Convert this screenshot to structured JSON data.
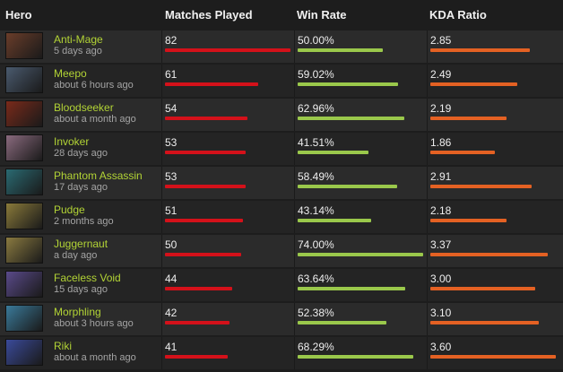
{
  "header": {
    "hero": "Hero",
    "matches": "Matches Played",
    "winrate": "Win Rate",
    "kda": "KDA Ratio"
  },
  "colors": {
    "matches_bar": "#d4111a",
    "winrate_bar": "#9ac84b",
    "kda_bar": "#e46123",
    "hero_name": "#b2d335"
  },
  "rows": [
    {
      "hero": "Anti-Mage",
      "ago": "5 days ago",
      "matches": "82",
      "winrate": "50.00%",
      "kda": "2.85",
      "portrait": "anti-mage-portrait",
      "pcolor": "#6a3d2a",
      "m_frac": 1.0,
      "w_frac": 0.6757,
      "k_frac": 0.7917
    },
    {
      "hero": "Meepo",
      "ago": "about 6 hours ago",
      "matches": "61",
      "winrate": "59.02%",
      "kda": "2.49",
      "portrait": "meepo-portrait",
      "pcolor": "#4a5a6e",
      "m_frac": 0.7439,
      "w_frac": 0.7976,
      "k_frac": 0.6917
    },
    {
      "hero": "Bloodseeker",
      "ago": "about a month ago",
      "matches": "54",
      "winrate": "62.96%",
      "kda": "2.19",
      "portrait": "bloodseeker-portrait",
      "pcolor": "#7a2a1a",
      "m_frac": 0.6585,
      "w_frac": 0.8508,
      "k_frac": 0.6083
    },
    {
      "hero": "Invoker",
      "ago": "28 days ago",
      "matches": "53",
      "winrate": "41.51%",
      "kda": "1.86",
      "portrait": "invoker-portrait",
      "pcolor": "#8a6a7e",
      "m_frac": 0.6463,
      "w_frac": 0.5609,
      "k_frac": 0.5167
    },
    {
      "hero": "Phantom Assassin",
      "ago": "17 days ago",
      "matches": "53",
      "winrate": "58.49%",
      "kda": "2.91",
      "portrait": "phantom-assassin-portrait",
      "pcolor": "#2a6a72",
      "m_frac": 0.6463,
      "w_frac": 0.7904,
      "k_frac": 0.8083
    },
    {
      "hero": "Pudge",
      "ago": "2 months ago",
      "matches": "51",
      "winrate": "43.14%",
      "kda": "2.18",
      "portrait": "pudge-portrait",
      "pcolor": "#8a7a3a",
      "m_frac": 0.622,
      "w_frac": 0.583,
      "k_frac": 0.6056
    },
    {
      "hero": "Juggernaut",
      "ago": "a day ago",
      "matches": "50",
      "winrate": "74.00%",
      "kda": "3.37",
      "portrait": "juggernaut-portrait",
      "pcolor": "#8a7a40",
      "m_frac": 0.6098,
      "w_frac": 1.0,
      "k_frac": 0.9361
    },
    {
      "hero": "Faceless Void",
      "ago": "15 days ago",
      "matches": "44",
      "winrate": "63.64%",
      "kda": "3.00",
      "portrait": "faceless-void-portrait",
      "pcolor": "#5a4a8a",
      "m_frac": 0.5366,
      "w_frac": 0.86,
      "k_frac": 0.8333
    },
    {
      "hero": "Morphling",
      "ago": "about 3 hours ago",
      "matches": "42",
      "winrate": "52.38%",
      "kda": "3.10",
      "portrait": "morphling-portrait",
      "pcolor": "#3a7a9a",
      "m_frac": 0.5122,
      "w_frac": 0.7078,
      "k_frac": 0.8611
    },
    {
      "hero": "Riki",
      "ago": "about a month ago",
      "matches": "41",
      "winrate": "68.29%",
      "kda": "3.60",
      "portrait": "riki-portrait",
      "pcolor": "#3a4a9a",
      "m_frac": 0.5,
      "w_frac": 0.9228,
      "k_frac": 1.0
    }
  ]
}
